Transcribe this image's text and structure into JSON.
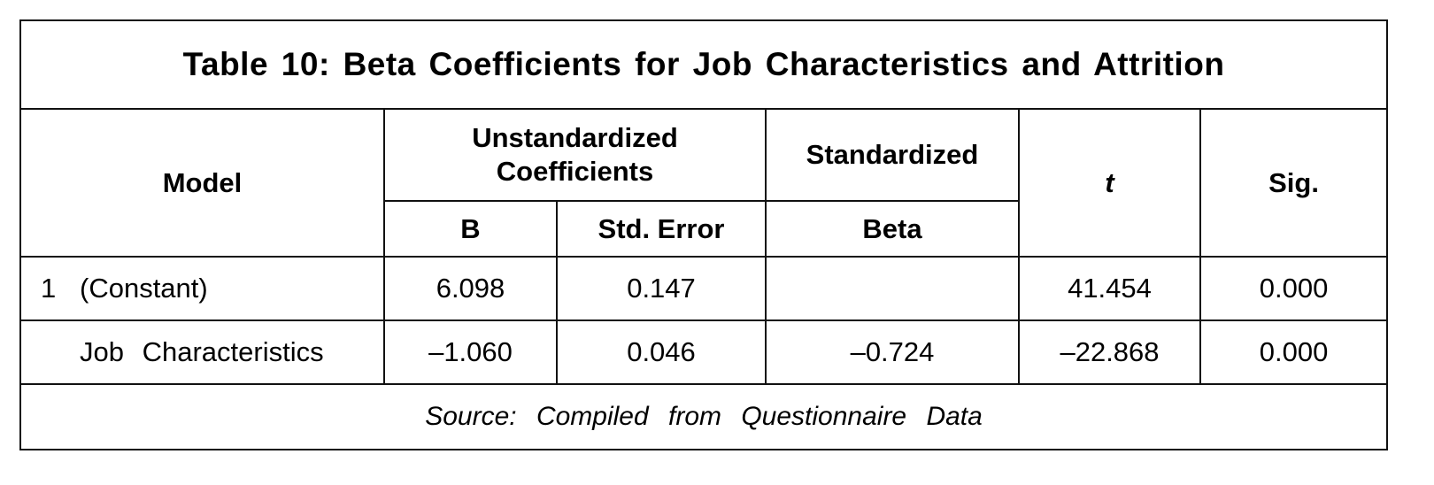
{
  "title": "Table 10: Beta Coefficients for Job Characteristics and Attrition",
  "headers": {
    "model": "Model",
    "unstandardized": "Unstandardized Coefficients",
    "standardized": "Standardized",
    "t": "t",
    "sig": "Sig.",
    "b": "B",
    "std_error": "Std. Error",
    "beta": "Beta"
  },
  "rows": [
    {
      "num": "1",
      "model": "(Constant)",
      "b": "6.098",
      "std_error": "0.147",
      "beta": "",
      "t": "41.454",
      "sig": "0.000"
    },
    {
      "num": "",
      "model": "Job Characteristics",
      "b": "–1.060",
      "std_error": "0.046",
      "beta": "–0.724",
      "t": "–22.868",
      "sig": "0.000"
    }
  ],
  "source": "Source: Compiled from Questionnaire Data"
}
